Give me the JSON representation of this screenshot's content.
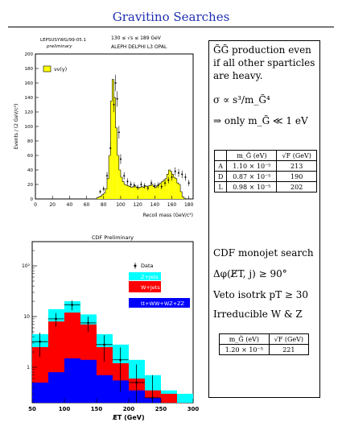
{
  "page": {
    "title": "Gravitino Searches"
  },
  "top_plot": {
    "label_line1": "LEPSUSYWG/99-05.1",
    "label_line2": "preliminary",
    "energy_label": "130 ≤ √s ≤ 189 GeV",
    "experiments": "ALEPH DELPHI L3 OPAL",
    "legend_label": "νν(γ)",
    "ylabel": "Events / (2 GeV/c²)",
    "xlabel": "Recoil mass (GeV/c²)",
    "x_ticks": [
      "0",
      "20",
      "40",
      "60",
      "80",
      "100",
      "120",
      "140",
      "160",
      "180"
    ],
    "y_ticks": [
      "0",
      "20",
      "40",
      "60",
      "80",
      "100",
      "120",
      "140",
      "160",
      "180",
      "200"
    ]
  },
  "bottom_plot": {
    "title": "CDF Preliminary",
    "xlabel": "E̸T (GeV)",
    "x_ticks": [
      "50",
      "100",
      "150",
      "200",
      "250",
      "300"
    ],
    "y_ticks": [
      "1",
      "10",
      "10²"
    ],
    "legend": {
      "data": "Data",
      "zjets": "Z+Jets",
      "wjets": "W+Jets",
      "other": "tt+WW+WZ+ZZ"
    }
  },
  "panel": {
    "line1": "G̃G̃ production even",
    "line2": "if all other sparticles",
    "line3": "are heavy.",
    "sigma": "σ ∝ s³/m_G̃⁴",
    "only": "⇒ only m_G̃ ≪ 1 eV",
    "lep_table": {
      "header": [
        "",
        "m_G̃ (eV)",
        "√F (GeV)"
      ],
      "rows": [
        [
          "A",
          "1.10 × 10⁻⁵",
          "213"
        ],
        [
          "D",
          "0.87 × 10⁻⁵",
          "190"
        ],
        [
          "L",
          "0.98 × 10⁻⁵",
          "202"
        ]
      ]
    },
    "cdf1": "CDF monojet search",
    "cdf2": "Δφ(E̸T, j) ≥ 90°",
    "cdf3": "Veto isotrk pT ≥ 30",
    "cdf4": "Irreducible W & Z",
    "cdf_table": {
      "header": [
        "m_G̃ (eV)",
        "√F (GeV)"
      ],
      "row": [
        "1.20 × 10⁻⁵",
        "221"
      ]
    }
  },
  "chart_data": [
    {
      "type": "bar",
      "title": "",
      "xlabel": "Recoil mass (GeV/c²)",
      "ylabel": "Events / (2 GeV/c²)",
      "xlim": [
        0,
        185
      ],
      "ylim": [
        0,
        200
      ],
      "series": [
        {
          "name": "νν(γ)",
          "x_start": 72,
          "bin_width": 2,
          "values": [
            2,
            3,
            4,
            6,
            8,
            14,
            28,
            60,
            135,
            165,
            140,
            98,
            60,
            40,
            30,
            24,
            20,
            19,
            18,
            17,
            16,
            17,
            18,
            16,
            15,
            16,
            17,
            16,
            18,
            17,
            18,
            19,
            20,
            17,
            16,
            18,
            20,
            22,
            24,
            26,
            28,
            34,
            40,
            38,
            34,
            30,
            28,
            22,
            20,
            10,
            3,
            1
          ]
        },
        {
          "name": "Data",
          "x": [
            76,
            80,
            84,
            88,
            92,
            94,
            96,
            98,
            100,
            104,
            108,
            112,
            116,
            120,
            124,
            128,
            132,
            136,
            140,
            144,
            148,
            152,
            156,
            160,
            164,
            168,
            172,
            176,
            180
          ],
          "values": [
            10,
            14,
            32,
            70,
            130,
            160,
            138,
            92,
            55,
            32,
            24,
            20,
            19,
            16,
            20,
            18,
            15,
            22,
            18,
            19,
            17,
            22,
            26,
            30,
            38,
            36,
            34,
            30,
            22
          ]
        }
      ]
    },
    {
      "type": "bar",
      "title": "CDF Preliminary",
      "xlabel": "E̸T (GeV)",
      "ylabel": "",
      "xlim": [
        50,
        300
      ],
      "ylim_log": [
        0.2,
        300
      ],
      "categories": [
        50,
        75,
        100,
        125,
        150,
        175,
        200,
        225,
        250,
        275
      ],
      "bin_width": 25,
      "series": [
        {
          "name": "Z+Jets",
          "values": [
            4.5,
            14,
            20,
            11,
            4.5,
            2.8,
            1.4,
            0.7,
            0.35,
            0.3
          ]
        },
        {
          "name": "W+Jets",
          "values": [
            2.5,
            8,
            12,
            7,
            2.5,
            1.2,
            0.6,
            0.35,
            0.3,
            0.2
          ]
        },
        {
          "name": "tt+WW+WZ+ZZ",
          "values": [
            0.5,
            0.8,
            1.5,
            1.4,
            0.7,
            0.55,
            0.35,
            0.25,
            0.2,
            0.2
          ]
        },
        {
          "name": "Data",
          "x": [
            62,
            87,
            112,
            137,
            162,
            187,
            212,
            237
          ],
          "values": [
            3.2,
            9,
            17,
            7.5,
            2.8,
            1.4,
            0.5,
            0.25
          ]
        }
      ]
    }
  ]
}
